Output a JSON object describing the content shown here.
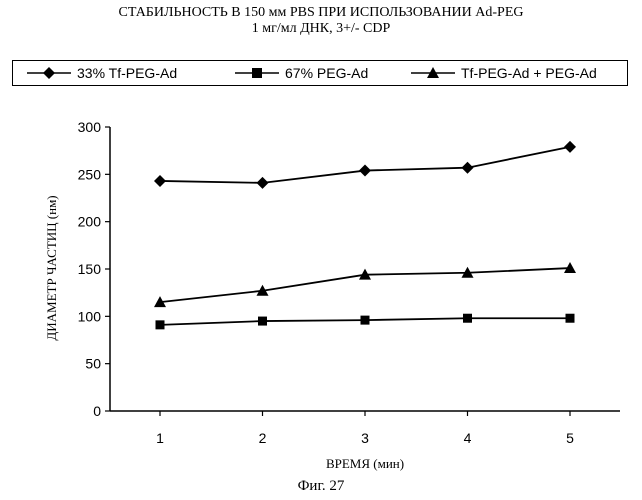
{
  "title": {
    "line1": "СТАБИЛЬНОСТЬ В 150 мм PBS ПРИ ИСПОЛЬЗОВАНИИ Ad-PEG",
    "line2": "1 мг/мл ДНК, 3+/- CDP"
  },
  "caption": "Фиг. 27",
  "chart_data": {
    "type": "line",
    "x": [
      1,
      2,
      3,
      4,
      5
    ],
    "xlabel": "ВРЕМЯ (мин)",
    "ylabel": "ДИАМЕТР ЧАСТИЦ (нм)",
    "ylim": [
      0,
      300
    ],
    "yticks": [
      0,
      50,
      100,
      150,
      200,
      250,
      300
    ],
    "legend_position": "top",
    "grid": false,
    "series": [
      {
        "name": "33% Tf-PEG-Ad",
        "marker": "diamond",
        "values": [
          243,
          241,
          254,
          257,
          279
        ]
      },
      {
        "name": "67% PEG-Ad",
        "marker": "square",
        "values": [
          91,
          95,
          96,
          98,
          98
        ]
      },
      {
        "name": "Tf-PEG-Ad + PEG-Ad",
        "marker": "triangle",
        "values": [
          115,
          127,
          144,
          146,
          151
        ]
      }
    ]
  }
}
